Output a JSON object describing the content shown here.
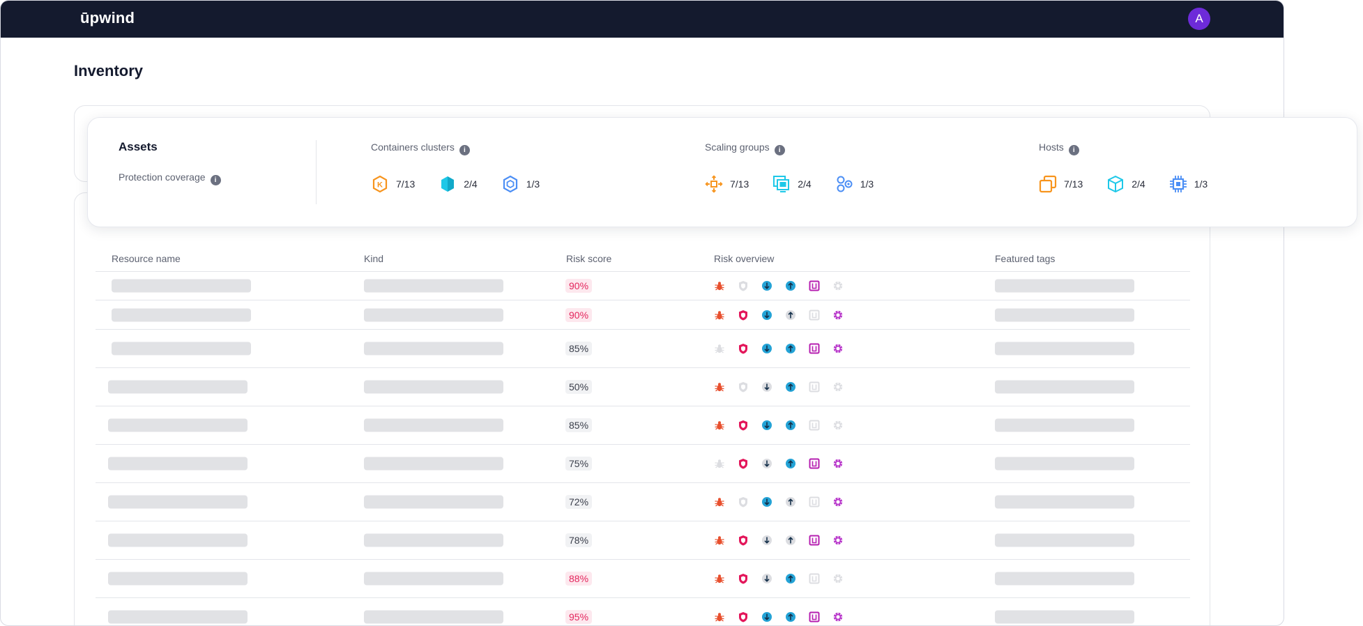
{
  "app": {
    "logo": "ūpwind",
    "avatar_initial": "A"
  },
  "page": {
    "title": "Inventory"
  },
  "summary": {
    "title": "Assets",
    "coverage_label": "Protection coverage",
    "groups": [
      {
        "title": "Containers clusters",
        "metrics": [
          {
            "icon": "kubernetes-icon",
            "value": "7/13",
            "color": "#f7941d"
          },
          {
            "icon": "container-hexagon-icon",
            "value": "2/4",
            "color": "#1ec8e8"
          },
          {
            "icon": "node-hexagon-icon",
            "value": "1/3",
            "color": "#4b8ef5"
          }
        ]
      },
      {
        "title": "Scaling groups",
        "metrics": [
          {
            "icon": "autoscale-icon",
            "value": "7/13",
            "color": "#f7941d"
          },
          {
            "icon": "instance-group-icon",
            "value": "2/4",
            "color": "#1ec8e8"
          },
          {
            "icon": "cluster-nodes-icon",
            "value": "1/3",
            "color": "#4b8ef5"
          }
        ]
      },
      {
        "title": "Hosts",
        "metrics": [
          {
            "icon": "copy-instances-icon",
            "value": "7/13",
            "color": "#f7941d"
          },
          {
            "icon": "cube-icon",
            "value": "2/4",
            "color": "#1ec8e8"
          },
          {
            "icon": "cpu-chip-icon",
            "value": "1/3",
            "color": "#4b8ef5"
          }
        ]
      }
    ]
  },
  "table": {
    "headers": [
      "Resource name",
      "Kind",
      "Risk score",
      "Risk overview",
      "Featured tags"
    ],
    "risk_icons": [
      "bug-icon",
      "shield-icon",
      "drop-down-icon",
      "drop-up-icon",
      "chip-square-icon",
      "brain-icon"
    ],
    "risk_colors": [
      "#e8502e",
      "#e3165a",
      "#24a3d6",
      "#24a3d6",
      "#b61fb0",
      "#b632c9"
    ],
    "rows": [
      {
        "score": "90%",
        "level": "high",
        "risks": [
          1,
          0,
          1,
          1,
          1,
          0
        ]
      },
      {
        "score": "90%",
        "level": "high",
        "risks": [
          1,
          1,
          1,
          0,
          0,
          1
        ]
      },
      {
        "score": "85%",
        "level": "mid",
        "risks": [
          0,
          1,
          1,
          1,
          1,
          1
        ]
      },
      {
        "score": "50%",
        "level": "mid",
        "risks": [
          1,
          0,
          0,
          1,
          0,
          0
        ]
      },
      {
        "score": "85%",
        "level": "mid",
        "risks": [
          1,
          1,
          1,
          1,
          0,
          0
        ]
      },
      {
        "score": "75%",
        "level": "mid",
        "risks": [
          0,
          1,
          0,
          1,
          1,
          1
        ]
      },
      {
        "score": "72%",
        "level": "mid",
        "risks": [
          1,
          0,
          1,
          0,
          0,
          1
        ]
      },
      {
        "score": "78%",
        "level": "mid",
        "risks": [
          1,
          1,
          0,
          0,
          1,
          1
        ]
      },
      {
        "score": "88%",
        "level": "high",
        "risks": [
          1,
          1,
          0,
          1,
          0,
          0
        ]
      },
      {
        "score": "95%",
        "level": "high",
        "risks": [
          1,
          1,
          1,
          1,
          1,
          1
        ]
      }
    ]
  }
}
